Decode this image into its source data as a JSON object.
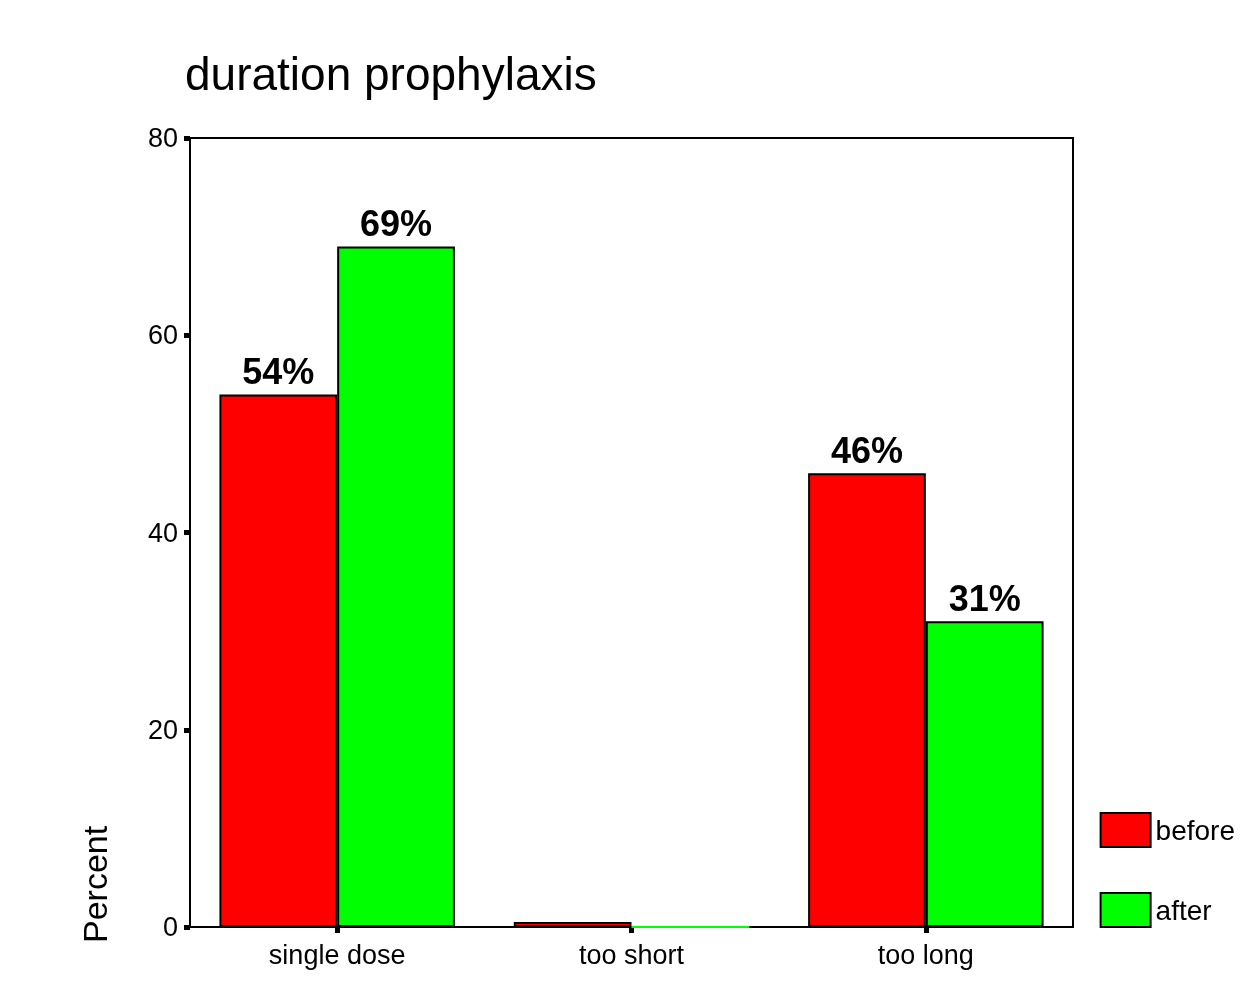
{
  "chart_data": {
    "type": "bar",
    "title": "duration prophylaxis",
    "ylabel": "Percent",
    "categories": [
      "single dose",
      "too short",
      "too long"
    ],
    "series": [
      {
        "name": "before",
        "color": "#ff0000",
        "values": [
          54,
          0.5,
          46
        ],
        "value_labels": [
          "54%",
          null,
          "46%"
        ]
      },
      {
        "name": "after",
        "color": "#00ff00",
        "values": [
          69,
          0,
          31
        ],
        "value_labels": [
          "69%",
          null,
          "31%"
        ]
      }
    ],
    "ylim": [
      0,
      80
    ],
    "yticks": [
      0,
      20,
      40,
      60,
      80
    ],
    "grid": false,
    "legend": "bottom right"
  }
}
